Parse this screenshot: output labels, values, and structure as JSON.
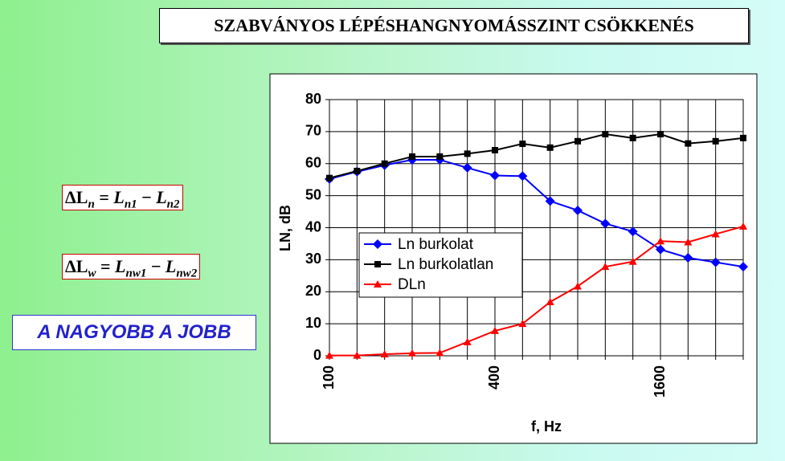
{
  "title": "SZABVÁNYOS LÉPÉSHANGNYOMÁSSZINT CSÖKKENÉS",
  "formulas": [
    {
      "lhs": "ΔL",
      "lhs_sub": "n",
      "eq": "=",
      "t1": "L",
      "t1_sub": "n1",
      "minus": "−",
      "t2": "L",
      "t2_sub": "n2"
    },
    {
      "lhs": "ΔL",
      "lhs_sub": "w",
      "eq": "=",
      "t1": "L",
      "t1_sub": "nw1",
      "minus": "−",
      "t2": "L",
      "t2_sub": "nw2"
    }
  ],
  "motto": "A NAGYOBB A JOBB",
  "chart_data": {
    "type": "line",
    "xlabel": "f, Hz",
    "ylabel": "LN, dB",
    "categories": [
      "100",
      null,
      null,
      null,
      null,
      null,
      "400",
      null,
      null,
      null,
      null,
      null,
      "1600",
      null,
      null,
      null
    ],
    "ylim": [
      0,
      80
    ],
    "yticks": [
      0,
      10,
      20,
      30,
      40,
      50,
      60,
      70,
      80
    ],
    "grid": true,
    "legend": "center",
    "series": [
      {
        "name": "Ln burkolat",
        "color": "#0000ff",
        "marker": "diamond",
        "values": [
          55.2,
          57.5,
          59.5,
          61.2,
          61.2,
          58.7,
          56.3,
          56.1,
          48.3,
          45.4,
          41.3,
          38.8,
          33.2,
          30.6,
          29.2,
          27.8
        ]
      },
      {
        "name": "Ln burkolatlan",
        "color": "#000000",
        "marker": "square",
        "values": [
          55.5,
          57.7,
          60.0,
          62.2,
          62.2,
          63.1,
          64.2,
          66.2,
          65.0,
          67.0,
          69.2,
          68.0,
          69.2,
          66.3,
          67.0,
          68.0
        ]
      },
      {
        "name": "DLn",
        "color": "#ff0000",
        "marker": "triangle",
        "values": [
          0.1,
          0.1,
          0.5,
          0.8,
          0.9,
          4.3,
          7.8,
          10.0,
          16.8,
          21.7,
          27.8,
          29.4,
          35.8,
          35.5,
          38.0,
          40.4
        ]
      }
    ]
  }
}
